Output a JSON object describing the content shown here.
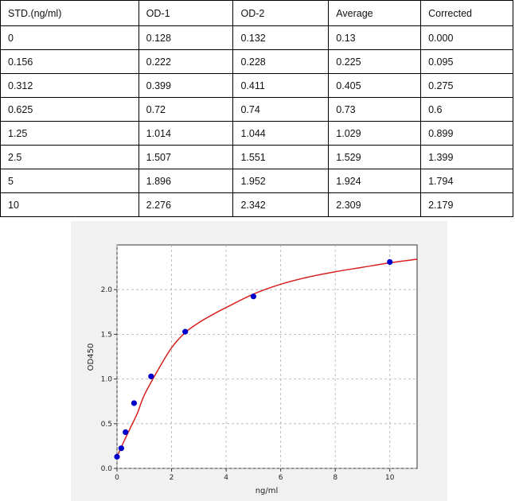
{
  "table": {
    "headers": [
      "STD.(ng/ml)",
      "OD-1",
      "OD-2",
      "Average",
      "Corrected"
    ],
    "rows": [
      [
        "0",
        "0.128",
        "0.132",
        "0.13",
        "0.000"
      ],
      [
        "0.156",
        "0.222",
        "0.228",
        "0.225",
        "0.095"
      ],
      [
        "0.312",
        "0.399",
        "0.411",
        "0.405",
        "0.275"
      ],
      [
        "0.625",
        "0.72",
        "0.74",
        "0.73",
        "0.6"
      ],
      [
        "1.25",
        "1.014",
        "1.044",
        "1.029",
        "0.899"
      ],
      [
        "2.5",
        "1.507",
        "1.551",
        "1.529",
        "1.399"
      ],
      [
        "5",
        "1.896",
        "1.952",
        "1.924",
        "1.794"
      ],
      [
        "10",
        "2.276",
        "2.342",
        "2.309",
        "2.179"
      ]
    ]
  },
  "chart_data": {
    "type": "scatter",
    "xlabel": "ng/ml",
    "ylabel": "OD450",
    "xlim": [
      0,
      11
    ],
    "ylim": [
      0,
      2.5
    ],
    "xticks": [
      "0",
      "2",
      "4",
      "6",
      "8",
      "10"
    ],
    "yticks": [
      "0.0",
      "0.5",
      "1.0",
      "1.5",
      "2.0"
    ],
    "grid": true,
    "series": [
      {
        "x": [
          0,
          0.156,
          0.312,
          0.625,
          1.25,
          2.5,
          5,
          10
        ],
        "y": [
          0.13,
          0.225,
          0.405,
          0.73,
          1.029,
          1.529,
          1.924,
          2.309
        ],
        "color": "#0000cc",
        "kind": "points"
      },
      {
        "kind": "fit",
        "color": "#d62020",
        "x": [
          0,
          0.25,
          0.5,
          0.75,
          1,
          1.5,
          2,
          2.5,
          3,
          3.5,
          4,
          5,
          6,
          7,
          8,
          9,
          10,
          11
        ],
        "y": [
          0.13,
          0.3,
          0.46,
          0.62,
          0.82,
          1.1,
          1.35,
          1.52,
          1.63,
          1.72,
          1.8,
          1.95,
          2.06,
          2.14,
          2.2,
          2.25,
          2.3,
          2.34
        ]
      }
    ]
  }
}
